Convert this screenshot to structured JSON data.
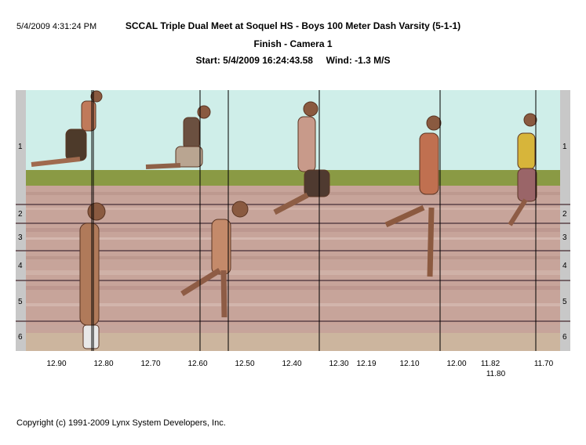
{
  "header": {
    "timestamp": "5/4/2009 4:31:24 PM",
    "title": "SCCAL Triple Dual Meet at Soquel HS - Boys 100 Meter Dash Varsity (5-1-1)",
    "subtitle": "Finish - Camera 1",
    "start": "Start: 5/4/2009 16:24:43.58",
    "wind": "Wind: -1.3 M/S"
  },
  "lanes": [
    "1",
    "2",
    "3",
    "4",
    "5",
    "6"
  ],
  "time_axis": {
    "ticks": [
      "12.90",
      "12.80",
      "12.70",
      "12.60",
      "12.50",
      "12.40",
      "12.30",
      "12.19",
      "12.10",
      "12.00",
      "11.82",
      "11.70"
    ],
    "extra_tick": "11.80"
  },
  "colors": {
    "sky": "#cfeee9",
    "track": "#c7a49a",
    "grass": "#8a9a44",
    "lane_line": "#6a4e52",
    "side_bar": "#c8c8c8"
  },
  "footer": {
    "copyright": "Copyright (c) 1991-2009 Lynx System Developers, Inc."
  }
}
